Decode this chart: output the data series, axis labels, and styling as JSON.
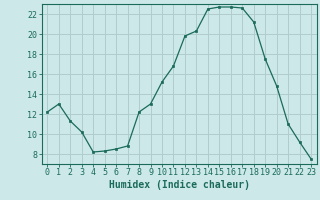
{
  "x": [
    0,
    1,
    2,
    3,
    4,
    5,
    6,
    7,
    8,
    9,
    10,
    11,
    12,
    13,
    14,
    15,
    16,
    17,
    18,
    19,
    20,
    21,
    22,
    23
  ],
  "y": [
    12.2,
    13.0,
    11.3,
    10.2,
    8.2,
    8.3,
    8.5,
    8.8,
    12.2,
    13.0,
    15.2,
    16.8,
    19.8,
    20.3,
    22.5,
    22.7,
    22.7,
    22.6,
    21.2,
    17.5,
    14.8,
    11.0,
    9.2,
    7.5
  ],
  "xlabel": "Humidex (Indice chaleur)",
  "ylim": [
    7,
    23
  ],
  "xlim": [
    -0.5,
    23.5
  ],
  "yticks": [
    8,
    10,
    12,
    14,
    16,
    18,
    20,
    22
  ],
  "xticks": [
    0,
    1,
    2,
    3,
    4,
    5,
    6,
    7,
    8,
    9,
    10,
    11,
    12,
    13,
    14,
    15,
    16,
    17,
    18,
    19,
    20,
    21,
    22,
    23
  ],
  "line_color": "#1a6b5a",
  "marker_color": "#1a6b5a",
  "bg_color": "#cce8e8",
  "grid_color": "#b0cccc",
  "axis_color": "#1a6b5a",
  "label_color": "#1a6b5a",
  "tick_color": "#1a6b5a",
  "xlabel_fontsize": 7,
  "tick_fontsize": 6
}
